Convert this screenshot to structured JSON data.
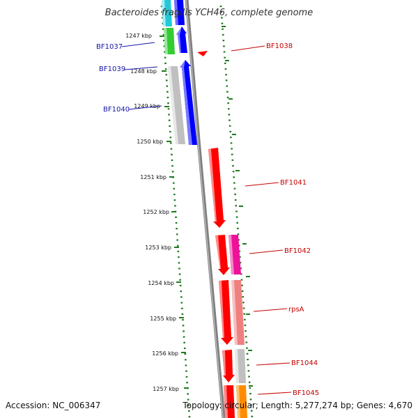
{
  "title": "Bacteroides fragilis YCH46, complete genome",
  "footer": {
    "accession": "Accession: NC_006347",
    "topology": "Topology: circular; Length: 5,277,274 bp; Genes: 4,670"
  },
  "ticks": [
    "1247 kbp",
    "1248 kbp",
    "1249 kbp",
    "1250 kbp",
    "1251 kbp",
    "1252 kbp",
    "1253 kbp",
    "1254 kbp",
    "1255 kbp",
    "1256 kbp",
    "1257 kbp"
  ],
  "genes_left": [
    "BF1037",
    "BF1039",
    "BF1040"
  ],
  "genes_right": [
    "BF1038",
    "BF1041",
    "BF1042",
    "rpsA",
    "BF1044",
    "BF1045"
  ],
  "colors": {
    "backbone": "#8a8a8a",
    "forward_strand": "#0000ff",
    "reverse_strand": "#ff0000",
    "gc_dots": "#1f7a1f",
    "cyan": "#22c8d8",
    "green": "#33cc33",
    "grey": "#c0c0c0",
    "magenta": "#ee1199",
    "salmon": "#f08080",
    "orange": "#ff8c00"
  }
}
